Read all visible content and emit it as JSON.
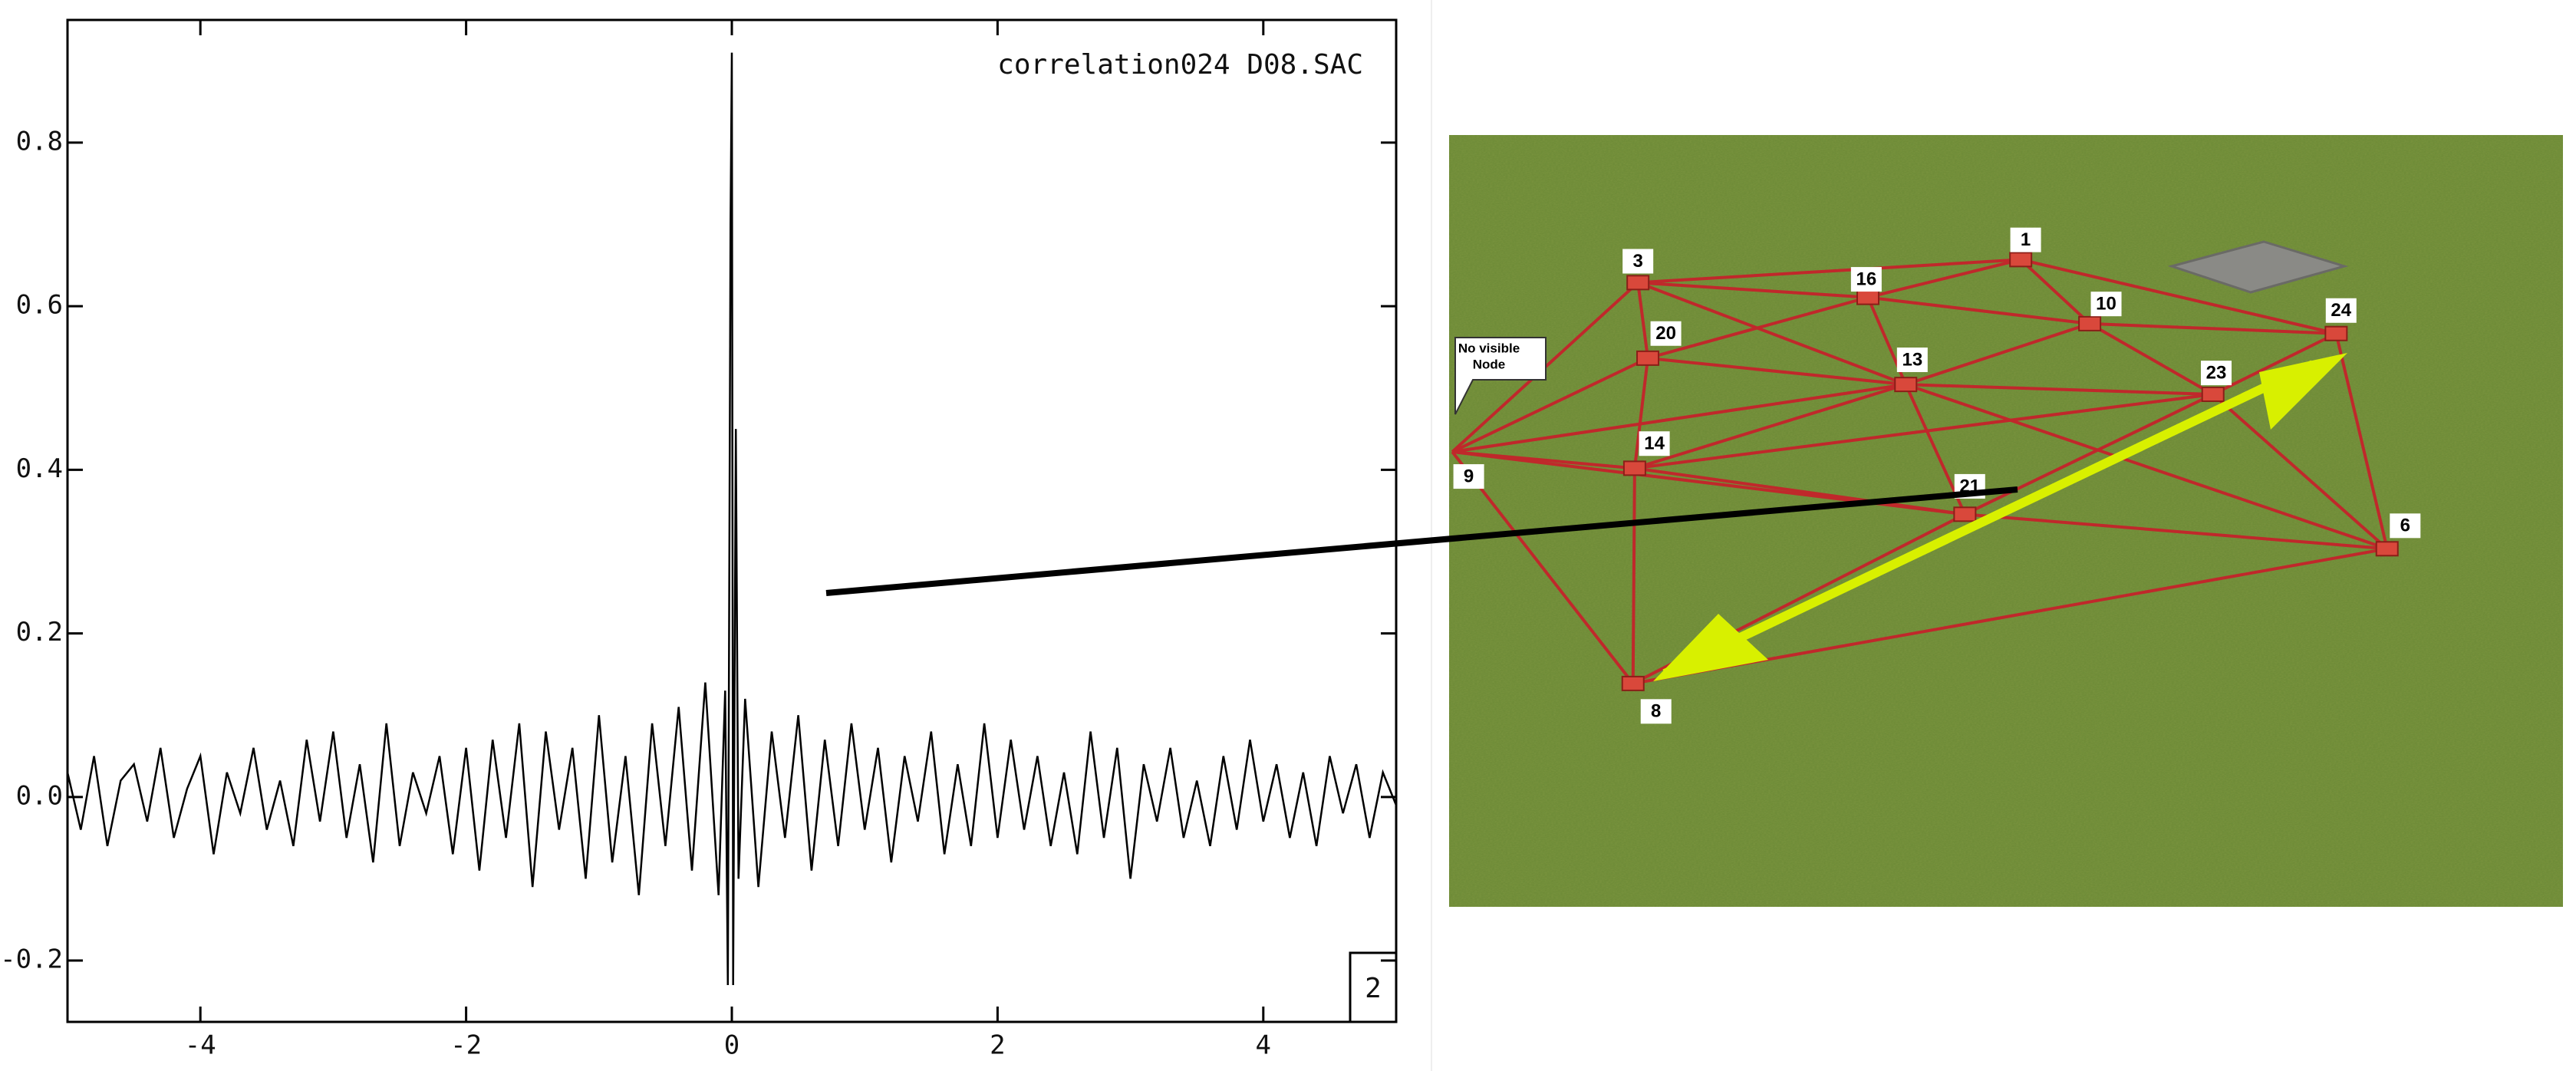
{
  "chart_data": {
    "type": "line",
    "title": "correlation024  D08.SAC",
    "corner_label": "2",
    "x": [
      -5.0,
      -4.9,
      -4.8,
      -4.7,
      -4.6,
      -4.5,
      -4.4,
      -4.3,
      -4.2,
      -4.1,
      -4.0,
      -3.9,
      -3.8,
      -3.7,
      -3.6,
      -3.5,
      -3.4,
      -3.3,
      -3.2,
      -3.1,
      -3.0,
      -2.9,
      -2.8,
      -2.7,
      -2.6,
      -2.5,
      -2.4,
      -2.3,
      -2.2,
      -2.1,
      -2.0,
      -1.9,
      -1.8,
      -1.7,
      -1.6,
      -1.5,
      -1.4,
      -1.3,
      -1.2,
      -1.1,
      -1.0,
      -0.9,
      -0.8,
      -0.7,
      -0.6,
      -0.5,
      -0.4,
      -0.3,
      -0.2,
      -0.1,
      -0.05,
      -0.03,
      -0.01,
      0,
      0.01,
      0.03,
      0.05,
      0.1,
      0.2,
      0.3,
      0.4,
      0.5,
      0.6,
      0.7,
      0.8,
      0.9,
      1.0,
      1.1,
      1.2,
      1.3,
      1.4,
      1.5,
      1.6,
      1.7,
      1.8,
      1.9,
      2.0,
      2.1,
      2.2,
      2.3,
      2.4,
      2.5,
      2.6,
      2.7,
      2.8,
      2.9,
      3.0,
      3.1,
      3.2,
      3.3,
      3.4,
      3.5,
      3.6,
      3.7,
      3.8,
      3.9,
      4.0,
      4.1,
      4.2,
      4.3,
      4.4,
      4.5,
      4.6,
      4.7,
      4.8,
      4.9,
      5.0
    ],
    "values": [
      0.03,
      -0.04,
      0.05,
      -0.06,
      0.02,
      0.04,
      -0.03,
      0.06,
      -0.05,
      0.01,
      0.05,
      -0.07,
      0.03,
      -0.02,
      0.06,
      -0.04,
      0.02,
      -0.06,
      0.07,
      -0.03,
      0.08,
      -0.05,
      0.04,
      -0.08,
      0.09,
      -0.06,
      0.03,
      -0.02,
      0.05,
      -0.07,
      0.06,
      -0.09,
      0.07,
      -0.05,
      0.09,
      -0.11,
      0.08,
      -0.04,
      0.06,
      -0.1,
      0.1,
      -0.08,
      0.05,
      -0.12,
      0.09,
      -0.06,
      0.11,
      -0.09,
      0.14,
      -0.12,
      0.13,
      -0.23,
      0.7,
      0.91,
      -0.23,
      0.45,
      -0.1,
      0.12,
      -0.11,
      0.08,
      -0.05,
      0.1,
      -0.09,
      0.07,
      -0.06,
      0.09,
      -0.04,
      0.06,
      -0.08,
      0.05,
      -0.03,
      0.08,
      -0.07,
      0.04,
      -0.06,
      0.09,
      -0.05,
      0.07,
      -0.04,
      0.05,
      -0.06,
      0.03,
      -0.07,
      0.08,
      -0.05,
      0.06,
      -0.1,
      0.04,
      -0.03,
      0.06,
      -0.05,
      0.02,
      -0.06,
      0.05,
      -0.04,
      0.07,
      -0.03,
      0.04,
      -0.05,
      0.03,
      -0.06,
      0.05,
      -0.02,
      0.04,
      -0.05,
      0.03,
      -0.01
    ],
    "color": "#000000",
    "xlim": [
      -5,
      5
    ],
    "ylim": [
      -0.275,
      0.95
    ],
    "xticks": [
      -4,
      -2,
      0,
      2,
      4
    ],
    "yticks": [
      -0.2,
      {
        "value": 0,
        "label": "0.0"
      },
      0.2,
      0.4,
      0.6,
      0.8
    ]
  },
  "photo": {
    "node_labels": [
      "1",
      "3",
      "16",
      "10",
      "24",
      "20",
      "13",
      "23",
      "14",
      "21",
      "6",
      "9",
      "8"
    ],
    "callout": [
      "No visible",
      "Node"
    ]
  }
}
